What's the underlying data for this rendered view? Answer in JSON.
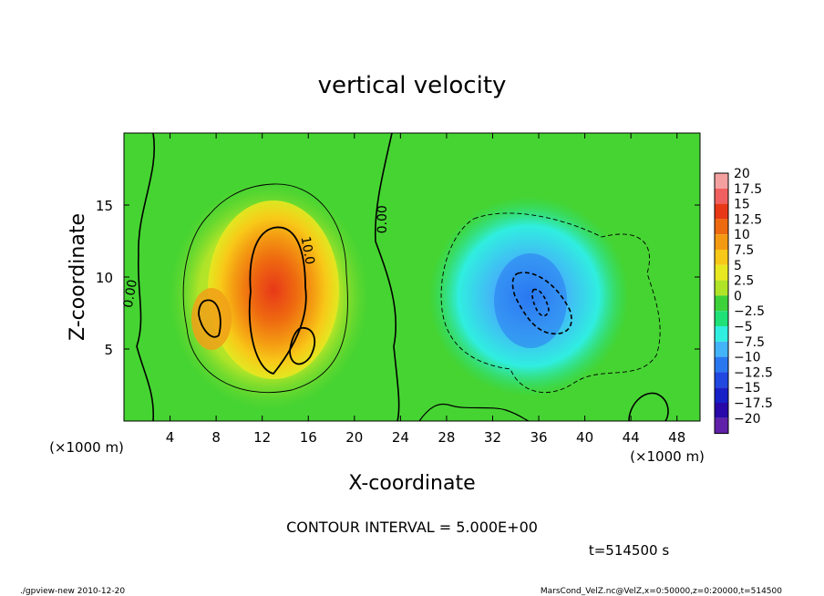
{
  "chart_data": {
    "type": "heatmap",
    "title": "vertical velocity",
    "xlabel": "X-coordinate",
    "ylabel": "Z-coordinate",
    "x_unit_label": "(×1000 m)",
    "y_unit_label": "(×1000 m)",
    "xlim": [
      0,
      50
    ],
    "ylim": [
      0,
      20
    ],
    "x_ticks": [
      4,
      8,
      12,
      16,
      20,
      24,
      28,
      32,
      36,
      40,
      44,
      48
    ],
    "y_ticks": [
      5,
      10,
      15
    ],
    "colorbar": {
      "labels": [
        "20",
        "17.5",
        "15",
        "12.5",
        "10",
        "7.5",
        "5",
        "2.5",
        "0",
        "−2.5",
        "−5",
        "−7.5",
        "−10",
        "−12.5",
        "−15",
        "−17.5",
        "−20"
      ],
      "colors": [
        "#f4a0a0",
        "#f06060",
        "#e83818",
        "#ee6a10",
        "#f49a12",
        "#f8c818",
        "#e8e820",
        "#b0e428",
        "#3ed23a",
        "#20e078",
        "#30eee0",
        "#44b4f8",
        "#2a78f0",
        "#2048e0",
        "#1820c8",
        "#2808a8",
        "#6020a8"
      ]
    },
    "contour_labels": [
      "0.00",
      "0.00",
      "10.0"
    ],
    "contour_interval": "CONTOUR INTERVAL = 5.000E+00",
    "time_label": "t=514500 s",
    "updraft": {
      "center_x": 13,
      "center_z": 9,
      "max_w": 12.5
    },
    "downdraft": {
      "center_x": 35,
      "center_z": 8.5,
      "min_w": -10
    }
  },
  "footer": {
    "left": "./gpview-new  2010-12-20",
    "right": "MarsCond_VelZ.nc@VelZ,x=0:50000,z=0:20000,t=514500"
  }
}
